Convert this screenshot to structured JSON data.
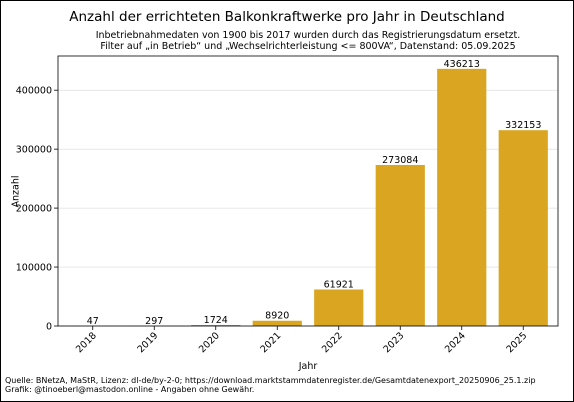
{
  "chart_data": {
    "type": "bar",
    "title": "Anzahl der errichteten Balkonkraftwerke pro Jahr in Deutschland",
    "subtitle_lines": [
      "Inbetriebnahmedaten von 1900 bis 2017 wurden durch das Registrierungsdatum ersetzt.",
      "Filter auf „in Betrieb“ und „Wechselrichterleistung <= 800VA“, Datenstand: 05.09.2025"
    ],
    "xlabel": "Jahr",
    "ylabel": "Anzahl",
    "categories": [
      "2018",
      "2019",
      "2020",
      "2021",
      "2022",
      "2023",
      "2024",
      "2025"
    ],
    "values": [
      47,
      297,
      1724,
      8920,
      61921,
      273084,
      436213,
      332153
    ],
    "data_labels": [
      "47",
      "297",
      "1724",
      "8920",
      "61921",
      "273084",
      "436213",
      "332153"
    ],
    "ylim": [
      0,
      458000
    ],
    "yticks": [
      0,
      100000,
      200000,
      300000,
      400000
    ],
    "ytick_labels": [
      "0",
      "100000",
      "200000",
      "300000",
      "400000"
    ],
    "grid": "y",
    "bar_color": "#DAA520"
  },
  "footer": {
    "source": "Quelle: BNetzA, MaStR, Lizenz: dl-de/by-2-0; https://download.marktstammdatenregister.de/Gesamtdatenexport_20250906_25.1.zip",
    "credit": "Grafik: @tinoeberl@mastodon.online - Angaben ohne Gewähr."
  }
}
